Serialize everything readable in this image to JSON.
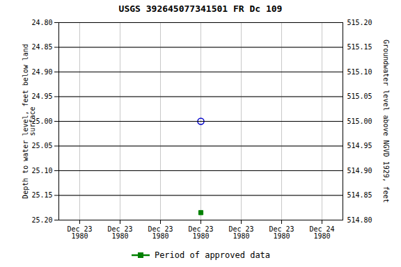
{
  "chart_data": {
    "type": "scatter",
    "title": "USGS 392645077341501 FR Dc 109",
    "ylabel": "Depth to water level, feet below land\nsurface",
    "y2label": "Groundwater level above NGVD 1929, feet",
    "categories": [
      "Dec 23\n1980",
      "Dec 23\n1980",
      "Dec 23\n1980",
      "Dec 23\n1980",
      "Dec 23\n1980",
      "Dec 23\n1980",
      "Dec 24\n1980"
    ],
    "series": [
      {
        "color": "#0000cc",
        "marker": "open_circle",
        "values": [
          null,
          null,
          null,
          25.0,
          null,
          null,
          null
        ]
      },
      {
        "name": "Period of approved data",
        "color": "#008000",
        "marker": "square",
        "values": [
          null,
          null,
          null,
          25.185,
          null,
          null,
          null
        ]
      }
    ],
    "ylim": [
      25.2,
      24.8
    ],
    "yticks": [
      {
        "value": 24.8,
        "label": "24.80"
      },
      24.85,
      {
        "value": 24.9,
        "label": "24.90"
      },
      24.95,
      {
        "value": 25.0,
        "label": "25.00"
      },
      25.05,
      {
        "value": 25.1,
        "label": "25.10"
      },
      25.15,
      {
        "value": 25.2,
        "label": "25.20"
      }
    ],
    "y2lim": [
      514.8,
      515.2
    ],
    "y2ticks": [
      {
        "value": 514.8,
        "label": "514.80"
      },
      514.85,
      {
        "value": 514.9,
        "label": "514.90"
      },
      514.95,
      {
        "value": 515.0,
        "label": "515.00"
      },
      515.05,
      {
        "value": 515.1,
        "label": "515.10"
      },
      515.15,
      {
        "value": 515.2,
        "label": "515.20"
      }
    ],
    "grid": true,
    "legend": "bottom"
  }
}
